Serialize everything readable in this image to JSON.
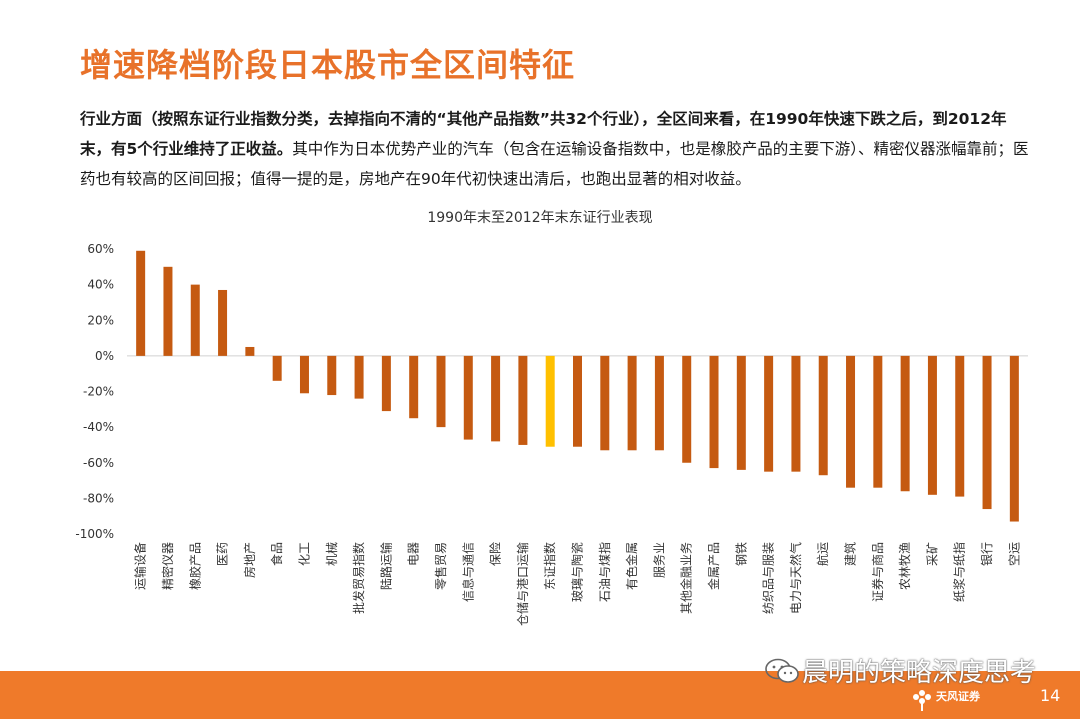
{
  "title": "增速降档阶段日本股市全区间特征",
  "paragraph": {
    "part1": "行业方面（按照东证行业指数分类，去掉指向不清的“其他产品指数”共32个行业），全区间来看，在1990年快速下跌之后，到2012年末，有5个行业维持了正收益。",
    "part2": "其中作为日本优势产业的汽车（包含在运输设备指数中，也是橡胶产品的主要下游）、精密仪器涨幅靠前；医药也有较高的区间回报；值得一提的是，房地产在90年代初快速出清后，也跑出显著的相对收益。"
  },
  "colors": {
    "accent": "#e8722a",
    "bar": "#c55a11",
    "highlight_bar": "#ffc000",
    "footer": "#ef7a2a"
  },
  "chart_data": {
    "type": "bar",
    "title": "1990年末至2012年末东证行业表现",
    "xlabel": "",
    "ylabel": "",
    "ylim": [
      -1.0,
      0.6
    ],
    "yticks": [
      0.6,
      0.4,
      0.2,
      0.0,
      -0.2,
      -0.4,
      -0.6,
      -0.8,
      -1.0
    ],
    "ytick_labels": [
      "60%",
      "40%",
      "20%",
      "0%",
      "-20%",
      "-40%",
      "-60%",
      "-80%",
      "-100%"
    ],
    "grid": false,
    "highlight_category": "东证指数",
    "categories": [
      "运输设备",
      "精密仪器",
      "橡胶产品",
      "医药",
      "房地产",
      "食品",
      "化工",
      "机械",
      "批发贸易指数",
      "陆路运输",
      "电器",
      "零售贸易",
      "信息与通信",
      "保险",
      "仓储与港口运输",
      "东证指数",
      "玻璃与陶瓷",
      "石油与煤指",
      "有色金属",
      "服务业",
      "其他金融业务",
      "金属产品",
      "钢铁",
      "纺织品与服装",
      "电力与天然气",
      "航运",
      "建筑",
      "证券与商品",
      "农林牧渔",
      "采矿",
      "纸浆与纸指",
      "银行",
      "空运"
    ],
    "values": [
      0.59,
      0.5,
      0.4,
      0.37,
      0.05,
      -0.14,
      -0.21,
      -0.22,
      -0.24,
      -0.31,
      -0.35,
      -0.4,
      -0.47,
      -0.48,
      -0.5,
      -0.51,
      -0.51,
      -0.53,
      -0.53,
      -0.53,
      -0.6,
      -0.63,
      -0.64,
      -0.65,
      -0.65,
      -0.67,
      -0.74,
      -0.74,
      -0.76,
      -0.78,
      -0.79,
      -0.86,
      -0.93
    ]
  },
  "footer": {
    "watermark": "晨明的策略深度思考",
    "logo_text": "天风证券",
    "page_number": "14"
  }
}
